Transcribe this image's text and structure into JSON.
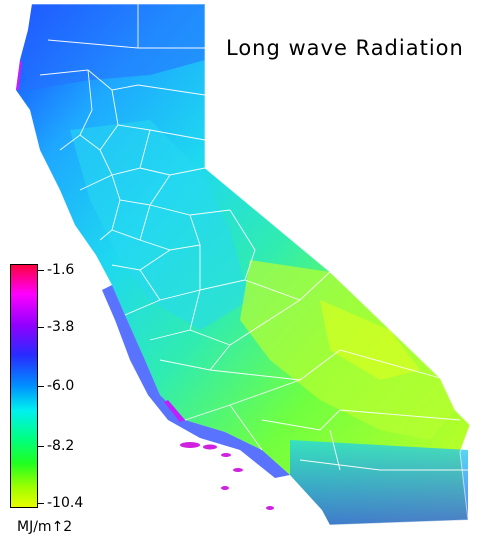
{
  "map": {
    "title": "Long wave Radiation",
    "region": "California",
    "legend": {
      "unit": "MJ/m↑2",
      "ticks": [
        "-1.6",
        "-3.8",
        "-6.0",
        "-8.2",
        "-10.4"
      ],
      "colors": [
        "#ff0040",
        "#ff00ff",
        "#9000ff",
        "#2a2aff",
        "#0090ff",
        "#00f0f0",
        "#00ff80",
        "#20ff20",
        "#a0ff00",
        "#e8ff00"
      ]
    },
    "colors": {
      "north": "#2a7cff",
      "central_coast": "#1ec8ff",
      "central_valley": "#2ee8d0",
      "sierra_east": "#40f080",
      "desert": "#c8ff20",
      "south_coast": "#4040ff",
      "border_lines": "#ffffff"
    }
  }
}
